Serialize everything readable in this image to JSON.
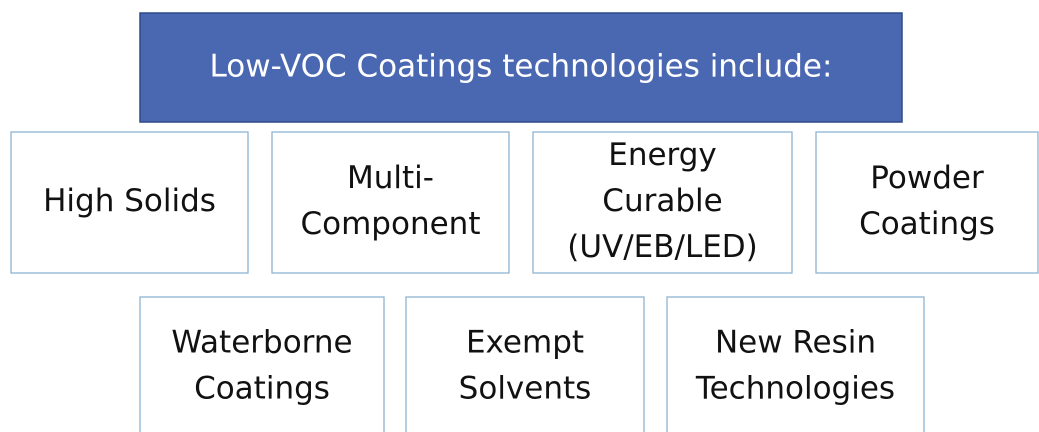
{
  "title": "Low-VOC Coatings technologies include:",
  "boxes": [
    {
      "lines": [
        "High Solids"
      ]
    },
    {
      "lines": [
        "Multi-",
        "Component"
      ]
    },
    {
      "lines": [
        "Energy",
        "Curable",
        "(UV/EB/LED)"
      ]
    },
    {
      "lines": [
        "Powder",
        "Coatings"
      ]
    },
    {
      "lines": [
        "Waterborne",
        "Coatings"
      ]
    },
    {
      "lines": [
        "Exempt",
        "Solvents"
      ]
    },
    {
      "lines": [
        "New Resin",
        "Technologies"
      ]
    }
  ]
}
